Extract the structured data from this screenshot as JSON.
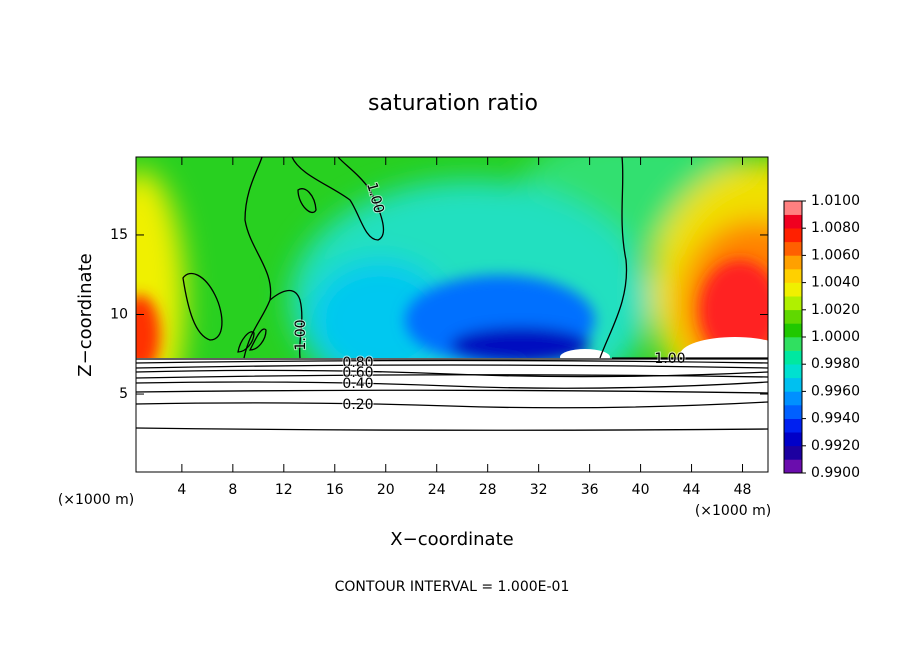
{
  "chart_data": {
    "type": "contour",
    "title": "saturation ratio",
    "xlabel": "X−coordinate",
    "ylabel": "Z−coordinate",
    "x_unit_left": "(×1000 m)",
    "x_unit_right": "(×1000 m)",
    "footer": "CONTOUR INTERVAL = 1.000E-01",
    "xlim": [
      0.4,
      50
    ],
    "ylim": [
      0.1,
      19.9
    ],
    "xticks": [
      4,
      8,
      12,
      16,
      20,
      24,
      28,
      32,
      36,
      40,
      44,
      48
    ],
    "yticks": [
      5,
      10,
      15
    ],
    "contours": [
      {
        "value": 1,
        "label": "1.00"
      },
      {
        "value": 0.8,
        "label": "0.80"
      },
      {
        "value": 0.6,
        "label": "0.60"
      },
      {
        "value": 0.4,
        "label": "0.40"
      },
      {
        "value": 0.2,
        "label": "0.20"
      }
    ],
    "colorbar": {
      "clim": [
        0.99,
        1.01
      ],
      "colors": [
        "#6a0dad",
        "#1c00a0",
        "#0000c8",
        "#0020f0",
        "#0060ff",
        "#0090ff",
        "#00c0f0",
        "#00e0d0",
        "#00e8a0",
        "#30e060",
        "#20c800",
        "#60d800",
        "#b0f000",
        "#f0f000",
        "#ffd000",
        "#ffa000",
        "#ff6000",
        "#ff2000",
        "#f00020",
        "#ff8080"
      ],
      "ticks": [
        {
          "value": 0.99,
          "label": "0.9900"
        },
        {
          "value": 0.992,
          "label": "0.9920"
        },
        {
          "value": 0.994,
          "label": "0.9940"
        },
        {
          "value": 0.996,
          "label": "0.9960"
        },
        {
          "value": 0.998,
          "label": "0.9980"
        },
        {
          "value": 1,
          "label": "1.0000"
        },
        {
          "value": 1.002,
          "label": "1.0020"
        },
        {
          "value": 1.004,
          "label": "1.0040"
        },
        {
          "value": 1.006,
          "label": "1.0060"
        },
        {
          "value": 1.008,
          "label": "1.0080"
        },
        {
          "value": 1.01,
          "label": "1.0100"
        }
      ]
    }
  }
}
